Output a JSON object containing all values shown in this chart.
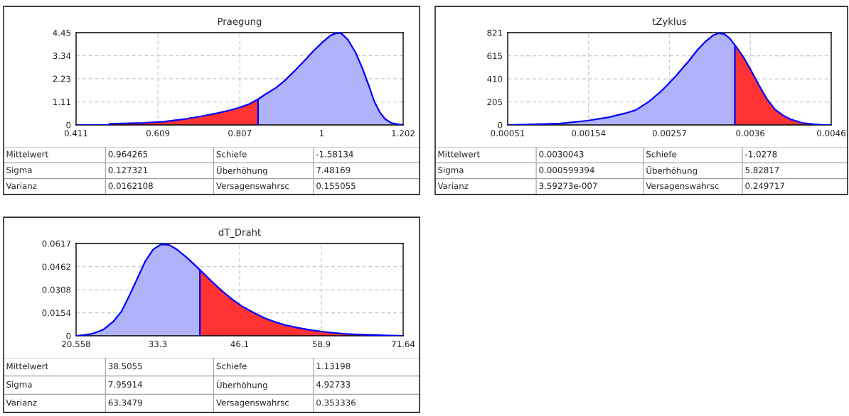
{
  "chart_data": [
    {
      "type": "area",
      "title": "Praegung",
      "xlim": [
        0.411,
        1.202
      ],
      "xticks": [
        0.411,
        0.609,
        0.807,
        {
          "value": 1.005,
          "label": "1"
        },
        1.202
      ],
      "ylim": [
        0,
        4.45
      ],
      "yticks": [
        0,
        1.11,
        2.23,
        3.34,
        4.45
      ],
      "grid": true,
      "series": [
        {
          "color": "#ff3333",
          "x": [
            0.411,
            0.489,
            0.493,
            0.573,
            0.624,
            0.676,
            0.714,
            0.753,
            0.785,
            0.808,
            0.83,
            0.851
          ],
          "values": [
            0,
            0,
            0.06,
            0.1,
            0.16,
            0.29,
            0.42,
            0.57,
            0.72,
            0.85,
            1.01,
            1.24
          ]
        },
        {
          "color": "#b0b2fa",
          "x": [
            0.851,
            0.869,
            0.895,
            0.914,
            0.94,
            0.965,
            0.985,
            1.007,
            1.026,
            1.039,
            1.052,
            1.068,
            1.087,
            1.103,
            1.12,
            1.132,
            1.145,
            1.158,
            1.174,
            1.19,
            1.202
          ],
          "values": [
            1.24,
            1.48,
            1.8,
            2.11,
            2.62,
            3.13,
            3.57,
            3.99,
            4.31,
            4.42,
            4.42,
            4.12,
            3.49,
            2.75,
            1.84,
            1.14,
            0.63,
            0.29,
            0.09,
            0.03,
            0
          ]
        },
        {
          "type": "line",
          "color": "#0000ff",
          "x": [
            0.411,
            0.489,
            0.493,
            0.573,
            0.624,
            0.676,
            0.714,
            0.753,
            0.785,
            0.808,
            0.83,
            0.851,
            0.869,
            0.895,
            0.914,
            0.94,
            0.965,
            0.985,
            1.007,
            1.026,
            1.039,
            1.052,
            1.068,
            1.087,
            1.103,
            1.12,
            1.132,
            1.145,
            1.158,
            1.174,
            1.19,
            1.202
          ],
          "values": [
            0,
            0,
            0.06,
            0.1,
            0.16,
            0.29,
            0.42,
            0.57,
            0.72,
            0.85,
            1.01,
            1.24,
            1.48,
            1.8,
            2.11,
            2.62,
            3.13,
            3.57,
            3.99,
            4.31,
            4.42,
            4.42,
            4.12,
            3.49,
            2.75,
            1.84,
            1.14,
            0.63,
            0.29,
            0.09,
            0.03,
            0
          ]
        }
      ],
      "ref_lines": [
        {
          "axis": "x",
          "value": 0.851,
          "color": "#0000ff"
        }
      ],
      "annotations": [
        "Mittelwert",
        "0.964265",
        "Schiefe",
        "-1.58134",
        "Sigma",
        "0.127321",
        "Überhöhung",
        "7.48169",
        "Varianz",
        "0.0162108",
        "Versagenswahrsc",
        "0.155055"
      ]
    },
    {
      "type": "area",
      "title": "tZyklus",
      "xlim": [
        0.00051,
        0.00463
      ],
      "xticks": [
        0.00051,
        0.00154,
        0.00257,
        0.0036,
        {
          "value": 0.00463,
          "label": "0.0046"
        }
      ],
      "ylim": [
        0,
        821
      ],
      "yticks": [
        0,
        205,
        410,
        615,
        821
      ],
      "grid": true,
      "series": [
        {
          "color": "#b0b2fa",
          "x": [
            0.00051,
            0.000841,
            0.001183,
            0.001525,
            0.001798,
            0.002003,
            0.002139,
            0.00231,
            0.002481,
            0.002652,
            0.002823,
            0.002925,
            0.003028,
            0.00313,
            0.003198,
            0.003267,
            0.003335,
            0.003403
          ],
          "values": [
            0,
            5,
            14,
            38,
            69,
            103,
            132,
            208,
            311,
            436,
            575,
            666,
            742,
            799,
            816,
            809,
            771,
            711
          ]
        },
        {
          "color": "#ff3333",
          "x": [
            0.003403,
            0.003506,
            0.003608,
            0.003711,
            0.003813,
            0.003916,
            0.004018,
            0.004121,
            0.004257,
            0.004394,
            0.004531,
            0.00463
          ],
          "values": [
            711,
            610,
            486,
            352,
            228,
            136,
            84,
            48,
            19,
            7,
            0,
            0
          ]
        },
        {
          "type": "line",
          "color": "#0000ff",
          "x": [
            0.00051,
            0.000841,
            0.001183,
            0.001525,
            0.001798,
            0.002003,
            0.002139,
            0.00231,
            0.002481,
            0.002652,
            0.002823,
            0.002925,
            0.003028,
            0.00313,
            0.003198,
            0.003267,
            0.003335,
            0.003403,
            0.003506,
            0.003608,
            0.003711,
            0.003813,
            0.003916,
            0.004018,
            0.004121,
            0.004257,
            0.004394,
            0.004531,
            0.00463
          ],
          "values": [
            0,
            5,
            14,
            38,
            69,
            103,
            132,
            208,
            311,
            436,
            575,
            666,
            742,
            799,
            816,
            809,
            771,
            711,
            610,
            486,
            352,
            228,
            136,
            84,
            48,
            19,
            7,
            0,
            0
          ]
        }
      ],
      "ref_lines": [
        {
          "axis": "x",
          "value": 0.003403,
          "color": "#0000ff"
        }
      ],
      "annotations": [
        "Mittelwert",
        "0.0030043",
        "Schiefe",
        "-1.0278",
        "Sigma",
        "0.000599394",
        "Überhöhung",
        "5.82817",
        "Varianz",
        "3.59273e-007",
        "Versagenswahrsc",
        "0.249717"
      ]
    },
    {
      "type": "area",
      "title": "dT_Draht",
      "xlim": [
        20.558,
        71.64
      ],
      "xticks": [
        20.558,
        {
          "value": 33.328,
          "label": "33.3"
        },
        {
          "value": 46.099,
          "label": "46.1"
        },
        {
          "value": 58.869,
          "label": "58.9"
        },
        71.64
      ],
      "ylim": [
        0,
        0.0617
      ],
      "yticks": [
        0,
        0.0154,
        0.0308,
        0.0462,
        0.0617
      ],
      "grid": true,
      "series": [
        {
          "color": "#b0b2fa",
          "x": [
            20.558,
            21.877,
            23.114,
            24.763,
            26.413,
            27.65,
            28.886,
            30.123,
            31.36,
            32.597,
            33.834,
            35.071,
            36.308,
            37.957,
            39.895
          ],
          "values": [
            0,
            0.0005,
            0.0014,
            0.004,
            0.0097,
            0.0163,
            0.0269,
            0.0383,
            0.0498,
            0.0577,
            0.0612,
            0.0608,
            0.0577,
            0.0519,
            0.0441
          ]
        },
        {
          "color": "#ff3333",
          "x": [
            39.895,
            41.668,
            43.317,
            44.966,
            46.615,
            48.265,
            49.914,
            51.563,
            53.212,
            55.274,
            57.335,
            59.397,
            62.283,
            64.345,
            67.643,
            71.64
          ],
          "values": [
            0.0441,
            0.0366,
            0.0301,
            0.0243,
            0.0193,
            0.0155,
            0.012,
            0.0093,
            0.0072,
            0.0053,
            0.0037,
            0.0026,
            0.0014,
            0.0009,
            0.0004,
            0
          ]
        },
        {
          "type": "line",
          "color": "#0000ff",
          "x": [
            20.558,
            21.877,
            23.114,
            24.763,
            26.413,
            27.65,
            28.886,
            30.123,
            31.36,
            32.597,
            33.834,
            35.071,
            36.308,
            37.957,
            39.895,
            41.668,
            43.317,
            44.966,
            46.615,
            48.265,
            49.914,
            51.563,
            53.212,
            55.274,
            57.335,
            59.397,
            62.283,
            64.345,
            67.643,
            71.64
          ],
          "values": [
            0,
            0.0005,
            0.0014,
            0.004,
            0.0097,
            0.0163,
            0.0269,
            0.0383,
            0.0498,
            0.0577,
            0.0612,
            0.0608,
            0.0577,
            0.0519,
            0.0441,
            0.0366,
            0.0301,
            0.0243,
            0.0193,
            0.0155,
            0.012,
            0.0093,
            0.0072,
            0.0053,
            0.0037,
            0.0026,
            0.0014,
            0.0009,
            0.0004,
            0
          ]
        }
      ],
      "ref_lines": [
        {
          "axis": "x",
          "value": 39.895,
          "color": "#0000ff"
        }
      ],
      "annotations": [
        "Mittelwert",
        "38.5055",
        "Schiefe",
        "1.13198",
        "Sigma",
        "7.95914",
        "Überhöhung",
        "4.92733",
        "Varianz",
        "63.3479",
        "Versagenswahrsc",
        "0.353336"
      ]
    }
  ]
}
